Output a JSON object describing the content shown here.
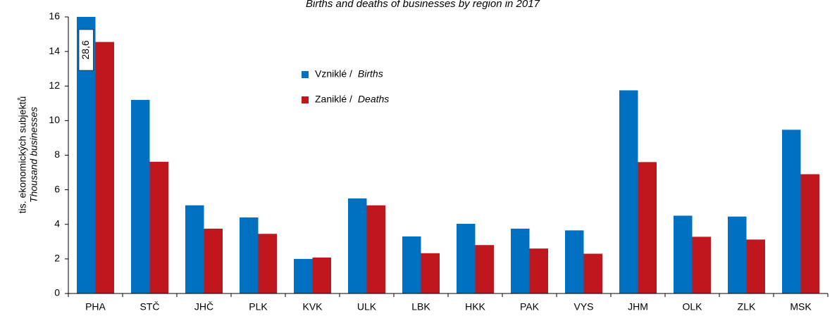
{
  "chart_data": {
    "type": "bar",
    "title": "Births and deaths of businesses by region in 2017",
    "y_label": "tis. ekonomických subjektů",
    "y_label_en": "Thousand businesses",
    "categories": [
      "PHA",
      "STČ",
      "JHČ",
      "PLK",
      "KVK",
      "ULK",
      "LBK",
      "HKK",
      "PAK",
      "VYS",
      "JHM",
      "OLK",
      "ZLK",
      "MSK"
    ],
    "series": [
      {
        "name": "Vzniklé /",
        "name_en": "Births",
        "color": "#0070c0",
        "values": [
          28.6,
          11.2,
          5.1,
          4.4,
          2.0,
          5.5,
          3.3,
          4.03,
          3.75,
          3.65,
          11.75,
          4.5,
          4.45,
          9.47
        ],
        "value_labels": [
          "28,6",
          null,
          null,
          null,
          null,
          null,
          null,
          null,
          null,
          null,
          null,
          null,
          null,
          null
        ]
      },
      {
        "name": "Zaniklé /",
        "name_en": "Deaths",
        "color": "#c0171f",
        "values": [
          14.55,
          7.62,
          3.75,
          3.45,
          2.08,
          5.1,
          2.33,
          2.8,
          2.6,
          2.3,
          7.6,
          3.28,
          3.12,
          6.9
        ]
      }
    ],
    "ylim": [
      0,
      16
    ],
    "yticks": [
      0,
      2,
      4,
      6,
      8,
      10,
      12,
      14,
      16
    ],
    "grid": false
  }
}
